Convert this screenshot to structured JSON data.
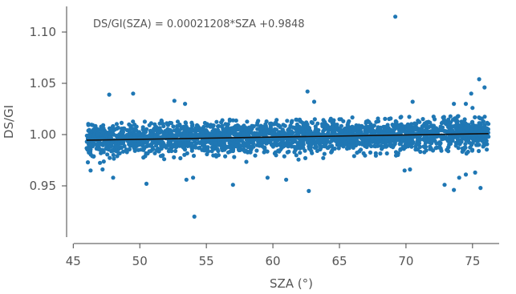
{
  "chart_data": {
    "type": "scatter",
    "title": "",
    "xlabel": "SZA (°)",
    "ylabel": "DS/GI",
    "xlim": [
      44.5,
      77
    ],
    "ylim": [
      0.9,
      1.125
    ],
    "x_ticks": [
      {
        "value": 45,
        "label": "45"
      },
      {
        "value": 50,
        "label": "50"
      },
      {
        "value": 55,
        "label": "55"
      },
      {
        "value": 60,
        "label": "60"
      },
      {
        "value": 65,
        "label": "65"
      },
      {
        "value": 70,
        "label": "70"
      },
      {
        "value": 75,
        "label": "75"
      }
    ],
    "y_ticks": [
      {
        "value": 0.95,
        "label": "0.95"
      },
      {
        "value": 1.0,
        "label": "1.00"
      },
      {
        "value": 1.05,
        "label": "1.05"
      },
      {
        "value": 1.1,
        "label": "1.10"
      }
    ],
    "grid": false,
    "point_color": "#1f77b4",
    "fit_color": "#111111",
    "annotation": "DS/GI(SZA) = 0.00021208*SZA +0.9848",
    "fit": {
      "slope": 0.00021208,
      "intercept": 0.9848,
      "x_range": [
        46,
        76.2
      ]
    },
    "series": [
      {
        "points": [
          [
            47.7,
            1.039
          ],
          [
            49.5,
            1.04
          ],
          [
            52.6,
            1.033
          ],
          [
            53.4,
            1.03
          ],
          [
            62.6,
            1.042
          ],
          [
            63.1,
            1.032
          ],
          [
            69.2,
            1.115
          ],
          [
            70.5,
            1.032
          ],
          [
            74.5,
            1.03
          ],
          [
            74.9,
            1.04
          ],
          [
            75.5,
            1.054
          ],
          [
            75.9,
            1.046
          ],
          [
            75.0,
            1.026
          ],
          [
            73.6,
            1.03
          ],
          [
            54.1,
            0.92
          ],
          [
            50.5,
            0.952
          ],
          [
            53.5,
            0.956
          ],
          [
            54.0,
            0.958
          ],
          [
            57.0,
            0.951
          ],
          [
            62.7,
            0.945
          ],
          [
            59.6,
            0.958
          ],
          [
            61.0,
            0.956
          ],
          [
            72.9,
            0.951
          ],
          [
            73.6,
            0.946
          ],
          [
            74.5,
            0.961
          ],
          [
            75.2,
            0.963
          ],
          [
            75.6,
            0.948
          ],
          [
            74.0,
            0.958
          ],
          [
            69.9,
            0.965
          ],
          [
            70.3,
            0.966
          ],
          [
            48.0,
            0.958
          ],
          [
            47.2,
            0.966
          ],
          [
            46.1,
            0.973
          ],
          [
            46.3,
            0.965
          ]
        ],
        "cloud": {
          "x_range": [
            46.0,
            76.2
          ],
          "center": "fit",
          "half_spread": 0.012,
          "count": 2600,
          "seed": 12345
        }
      }
    ]
  }
}
